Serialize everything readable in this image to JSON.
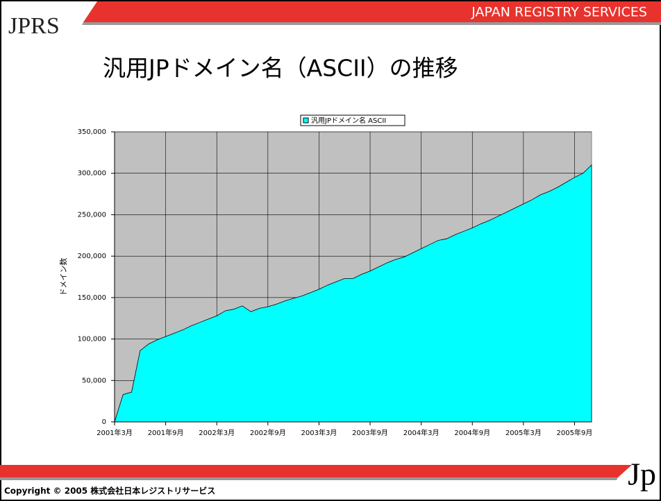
{
  "header": {
    "logo": "JPRS",
    "banner": "JAPAN REGISTRY SERVICES",
    "title": "汎用JPドメイン名（ASCII）の推移"
  },
  "footer": {
    "copyright": "Copyright © 2005 株式会社日本レジストリサービス",
    "logo": "Jp"
  },
  "chart_data": {
    "type": "area",
    "ylabel": "ドメイン数",
    "categories": [
      "2001年3月",
      null,
      null,
      null,
      null,
      null,
      "2001年9月",
      null,
      null,
      null,
      null,
      null,
      "2002年3月",
      null,
      null,
      null,
      null,
      null,
      "2002年9月",
      null,
      null,
      null,
      null,
      null,
      "2003年3月",
      null,
      null,
      null,
      null,
      null,
      "2003年9月",
      null,
      null,
      null,
      null,
      null,
      "2004年3月",
      null,
      null,
      null,
      null,
      null,
      "2004年9月",
      null,
      null,
      null,
      null,
      null,
      "2005年3月",
      null,
      null,
      null,
      null,
      null,
      "2005年9月",
      null,
      null
    ],
    "series": [
      {
        "name": "汎用JPドメイン名 ASCII",
        "color": "#00ffff",
        "values": [
          0,
          33000,
          36000,
          86000,
          94000,
          99000,
          103000,
          107000,
          111000,
          116000,
          120000,
          124000,
          128000,
          134000,
          136000,
          140000,
          133000,
          137000,
          139000,
          142000,
          146000,
          149000,
          152000,
          156000,
          160000,
          165000,
          169000,
          173000,
          173000,
          178000,
          182000,
          187000,
          192000,
          196000,
          199000,
          204000,
          209000,
          214000,
          219000,
          221000,
          226000,
          230000,
          234000,
          239000,
          243000,
          248000,
          253000,
          258000,
          263000,
          268000,
          274000,
          278000,
          283000,
          289000,
          295000,
          300000,
          310000
        ]
      }
    ],
    "ylim": [
      0,
      350000
    ],
    "yticks": [
      0,
      {
        "value": 50000,
        "label": "50,000"
      },
      {
        "value": 100000,
        "label": "100,000"
      },
      {
        "value": 150000,
        "label": "150,000"
      },
      {
        "value": 200000,
        "label": "200,000"
      },
      {
        "value": 250000,
        "label": "250,000"
      },
      {
        "value": 300000,
        "label": "300,000"
      },
      {
        "value": 350000,
        "label": "350,000"
      }
    ],
    "grid": true,
    "plot_background": "#c0c0c0",
    "legend": "top"
  }
}
